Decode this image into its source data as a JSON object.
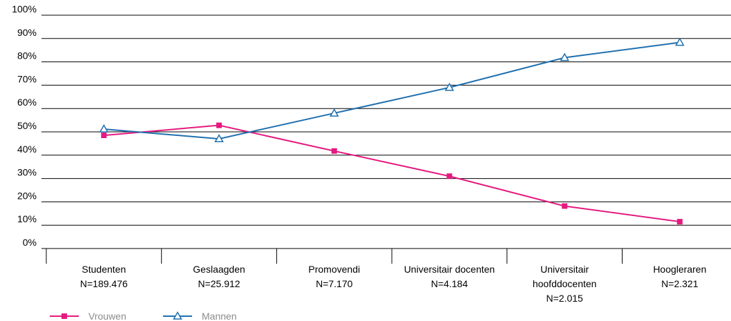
{
  "chart_data": {
    "type": "line",
    "title": "",
    "xlabel": "",
    "ylabel": "",
    "ylim": [
      0,
      100
    ],
    "y_ticks": [
      "0%",
      "10%",
      "20%",
      "30%",
      "40%",
      "50%",
      "60%",
      "70%",
      "80%",
      "90%",
      "100%"
    ],
    "categories": [
      [
        "Studenten",
        "N=189.476"
      ],
      [
        "Geslaagden",
        "N=25.912"
      ],
      [
        "Promovendi",
        "N=7.170"
      ],
      [
        "Universitair docenten",
        "N=4.184"
      ],
      [
        "Universitair",
        "hoofddocenten",
        "N=2.015"
      ],
      [
        "Hoogleraren",
        "N=2.321"
      ]
    ],
    "series": [
      {
        "name": "Vrouwen",
        "color": "#e5197f",
        "marker": "square",
        "values": [
          48.5,
          52.8,
          41.8,
          31.0,
          18.2,
          11.5
        ]
      },
      {
        "name": "Mannen",
        "color": "#1f6fae",
        "marker": "triangle-open",
        "values": [
          51.2,
          47.0,
          58.0,
          69.0,
          81.8,
          88.3
        ]
      }
    ],
    "grid": true,
    "legend": "bottom-left"
  }
}
